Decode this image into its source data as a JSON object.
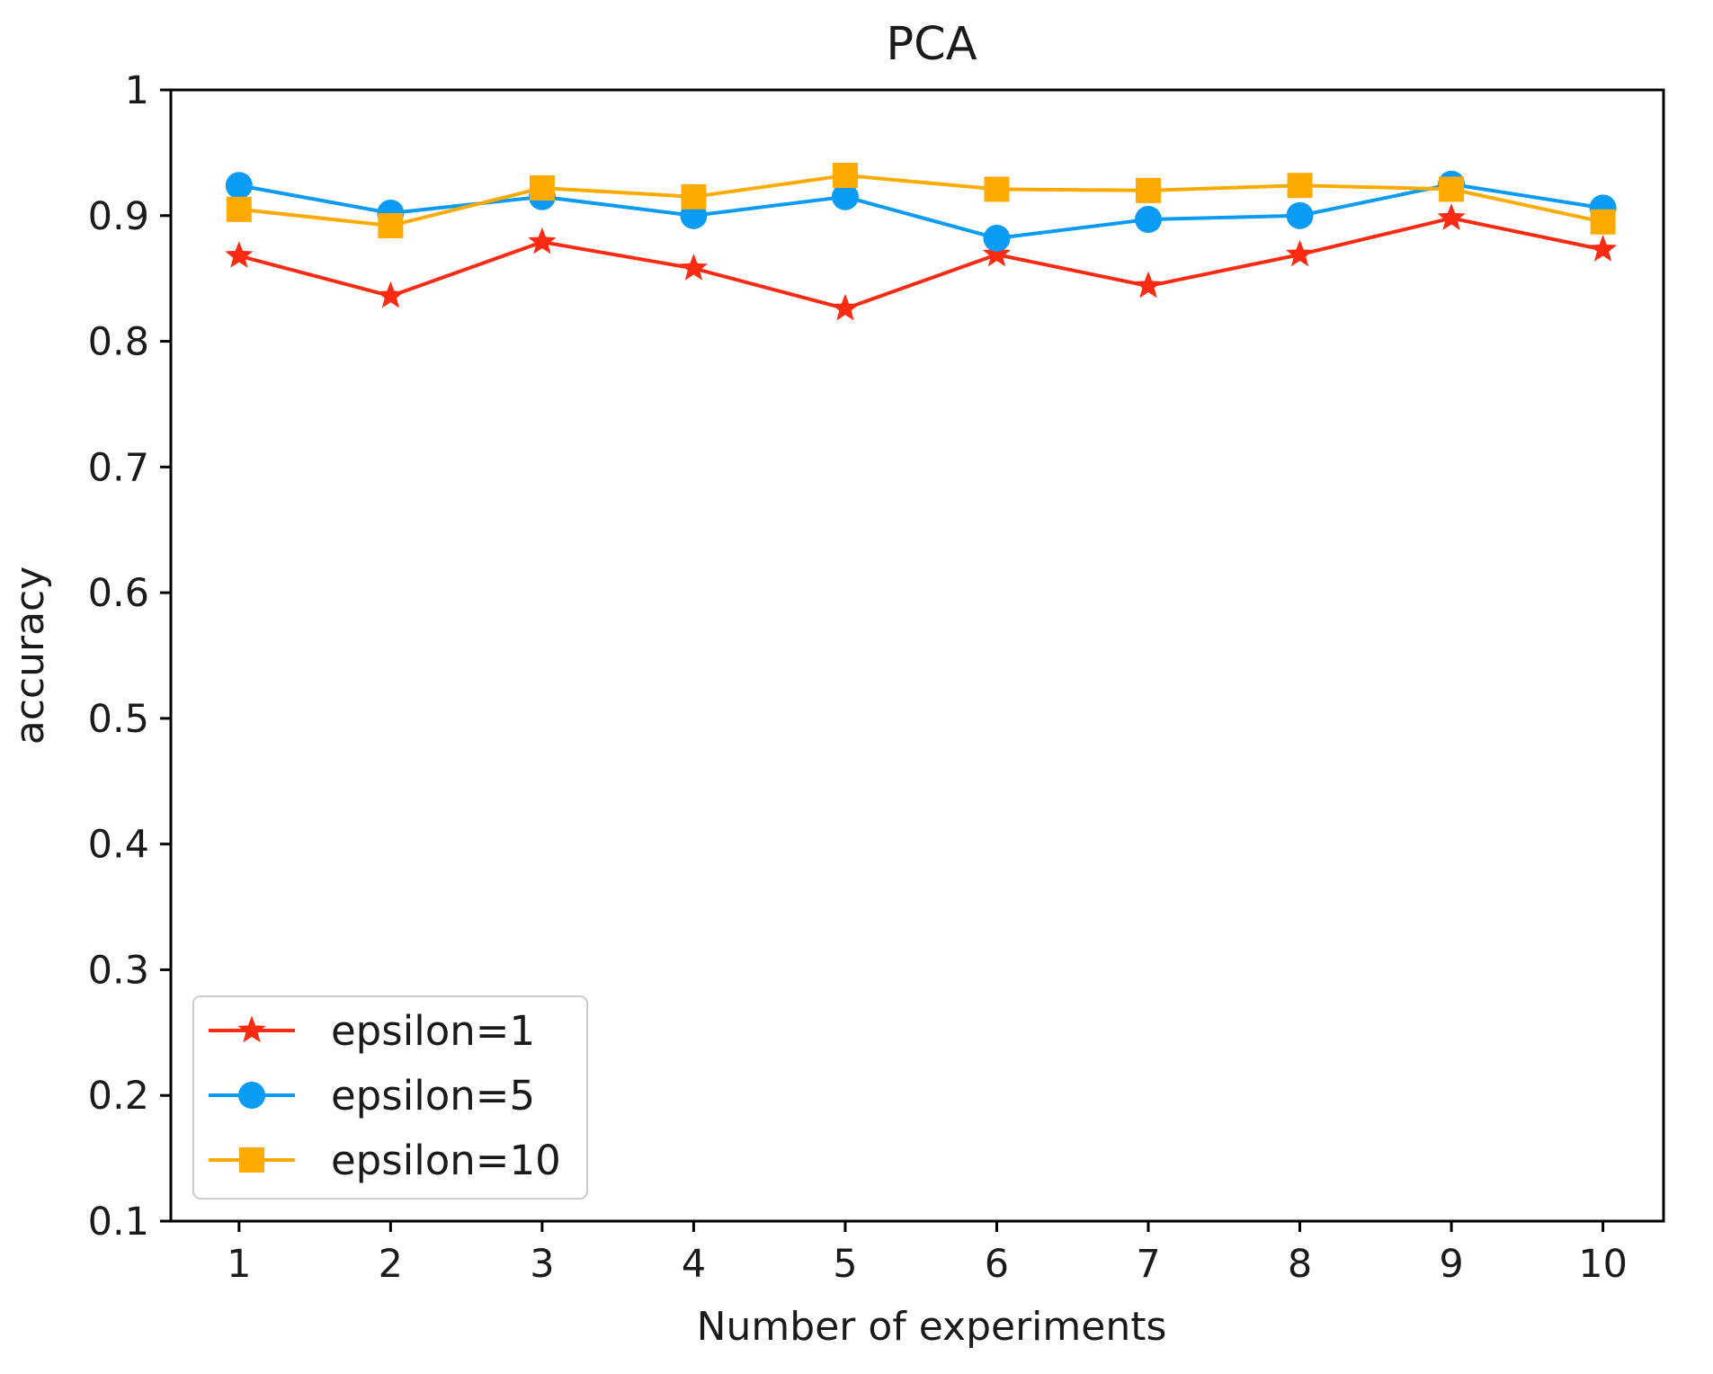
{
  "chart_data": {
    "type": "line",
    "title": "PCA",
    "xlabel": "Number of experiments",
    "ylabel": "accuracy",
    "xlim": [
      0.55,
      10.4
    ],
    "ylim": [
      0.1,
      1.0
    ],
    "x": [
      1,
      2,
      3,
      4,
      5,
      6,
      7,
      8,
      9,
      10
    ],
    "xticks": [
      "1",
      "2",
      "3",
      "4",
      "5",
      "6",
      "7",
      "8",
      "9",
      "10"
    ],
    "yticks": [
      "0.1",
      "0.2",
      "0.3",
      "0.4",
      "0.5",
      "0.6",
      "0.7",
      "0.8",
      "0.9",
      "1"
    ],
    "legend_position": "lower-left",
    "grid": false,
    "series": [
      {
        "name": "epsilon=1",
        "color": "#ff2a12",
        "marker": "star",
        "values": [
          0.868,
          0.836,
          0.879,
          0.858,
          0.826,
          0.869,
          0.844,
          0.869,
          0.898,
          0.873
        ]
      },
      {
        "name": "epsilon=5",
        "color": "#0a9bf5",
        "marker": "circle",
        "values": [
          0.924,
          0.902,
          0.915,
          0.9,
          0.915,
          0.882,
          0.897,
          0.9,
          0.925,
          0.906
        ]
      },
      {
        "name": "epsilon=10",
        "color": "#ffaa00",
        "marker": "square",
        "values": [
          0.905,
          0.892,
          0.922,
          0.915,
          0.932,
          0.921,
          0.92,
          0.924,
          0.921,
          0.895
        ]
      }
    ]
  }
}
